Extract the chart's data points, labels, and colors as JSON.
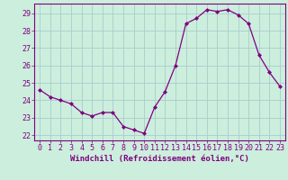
{
  "x": [
    0,
    1,
    2,
    3,
    4,
    5,
    6,
    7,
    8,
    9,
    10,
    11,
    12,
    13,
    14,
    15,
    16,
    17,
    18,
    19,
    20,
    21,
    22,
    23
  ],
  "y": [
    24.6,
    24.2,
    24.0,
    23.8,
    23.3,
    23.1,
    23.3,
    23.3,
    22.5,
    22.3,
    22.1,
    23.6,
    24.5,
    26.0,
    28.4,
    28.7,
    29.2,
    29.1,
    29.2,
    28.9,
    28.4,
    26.6,
    25.6,
    24.8
  ],
  "line_color": "#800080",
  "marker": "D",
  "marker_size": 2.0,
  "bg_color": "#cceedd",
  "grid_color": "#aacccc",
  "xlabel": "Windchill (Refroidissement éolien,°C)",
  "tick_fontsize": 6.0,
  "xlabel_fontsize": 6.5,
  "ylim": [
    21.7,
    29.55
  ],
  "xlim": [
    -0.5,
    23.5
  ],
  "yticks": [
    22,
    23,
    24,
    25,
    26,
    27,
    28,
    29
  ],
  "xticks": [
    0,
    1,
    2,
    3,
    4,
    5,
    6,
    7,
    8,
    9,
    10,
    11,
    12,
    13,
    14,
    15,
    16,
    17,
    18,
    19,
    20,
    21,
    22,
    23
  ]
}
